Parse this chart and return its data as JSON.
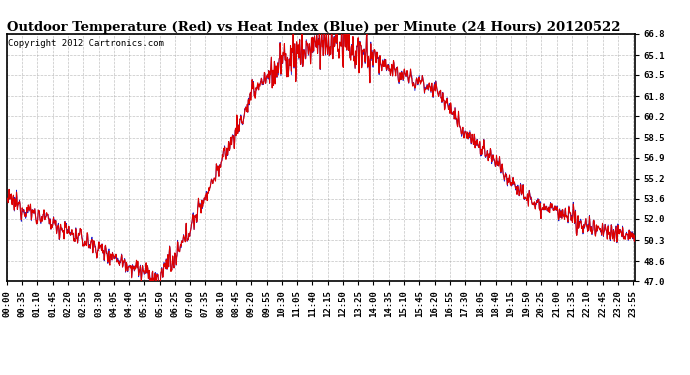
{
  "title": "Outdoor Temperature (Red) vs Heat Index (Blue) per Minute (24 Hours) 20120522",
  "copyright": "Copyright 2012 Cartronics.com",
  "yticks": [
    47.0,
    48.6,
    50.3,
    52.0,
    53.6,
    55.2,
    56.9,
    58.5,
    60.2,
    61.8,
    63.5,
    65.1,
    66.8
  ],
  "ymin": 47.0,
  "ymax": 66.8,
  "background_color": "#ffffff",
  "plot_background": "#ffffff",
  "grid_color": "#aaaaaa",
  "line_color_red": "#dd0000",
  "line_color_blue": "#0000cc",
  "title_fontsize": 9.5,
  "copyright_fontsize": 6.5,
  "tick_fontsize": 6.5,
  "xtick_interval": 35,
  "total_minutes": 1440
}
